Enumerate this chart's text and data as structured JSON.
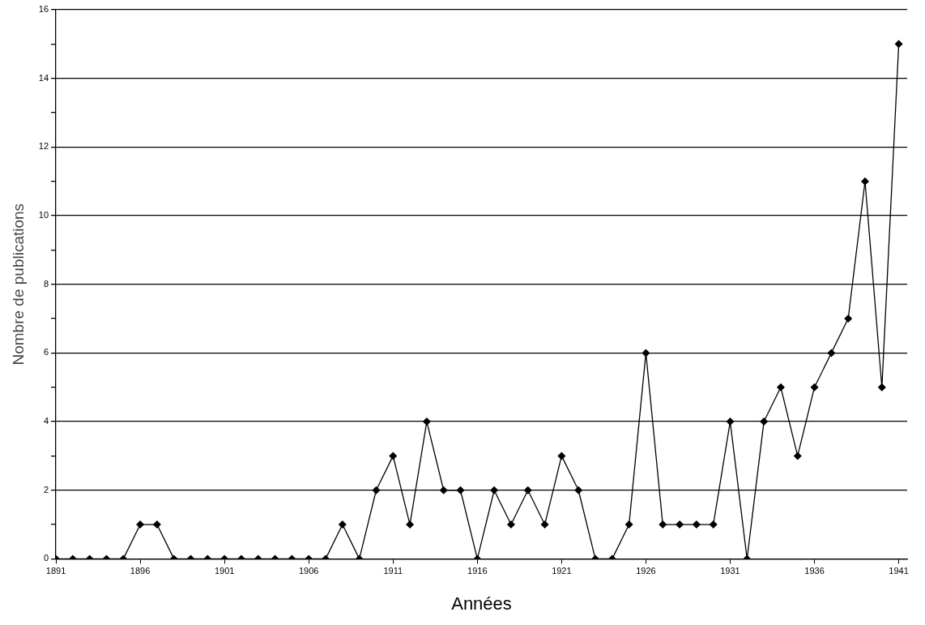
{
  "chart_data": {
    "type": "line",
    "xlabel": "Années",
    "ylabel": "Nombre de publications",
    "x": [
      1891,
      1892,
      1893,
      1894,
      1895,
      1896,
      1897,
      1898,
      1899,
      1900,
      1901,
      1902,
      1903,
      1904,
      1905,
      1906,
      1907,
      1908,
      1909,
      1910,
      1911,
      1912,
      1913,
      1914,
      1915,
      1916,
      1917,
      1918,
      1919,
      1920,
      1921,
      1922,
      1923,
      1924,
      1925,
      1926,
      1927,
      1928,
      1929,
      1930,
      1931,
      1932,
      1933,
      1934,
      1935,
      1936,
      1937,
      1938,
      1939,
      1940,
      1941
    ],
    "series": [
      {
        "color": "#000000",
        "values": [
          0,
          0,
          0,
          0,
          0,
          1,
          1,
          0,
          0,
          0,
          0,
          0,
          0,
          0,
          0,
          0,
          0,
          1,
          0,
          2,
          3,
          1,
          4,
          2,
          2,
          0,
          2,
          1,
          2,
          1,
          3,
          2,
          0,
          0,
          1,
          6,
          1,
          1,
          1,
          1,
          4,
          0,
          4,
          5,
          3,
          5,
          6,
          7,
          11,
          5,
          15
        ]
      }
    ],
    "xlim": [
      1891,
      1941.5
    ],
    "xticks": [
      1891,
      1896,
      1901,
      1906,
      1911,
      1916,
      1921,
      1926,
      1931,
      1936,
      1941
    ],
    "ylim": [
      0,
      16
    ],
    "yticks": [
      0,
      {
        "value": 1,
        "label": null
      },
      2,
      {
        "value": 3,
        "label": null
      },
      4,
      {
        "value": 5,
        "label": null
      },
      6,
      {
        "value": 7,
        "label": null
      },
      8,
      {
        "value": 9,
        "label": null
      },
      10,
      {
        "value": 11,
        "label": null
      },
      12,
      {
        "value": 13,
        "label": null
      },
      14,
      {
        "value": 15,
        "label": null
      },
      16
    ],
    "grid": "y",
    "legend": false,
    "marker": "diamond",
    "line_style": "solid"
  }
}
